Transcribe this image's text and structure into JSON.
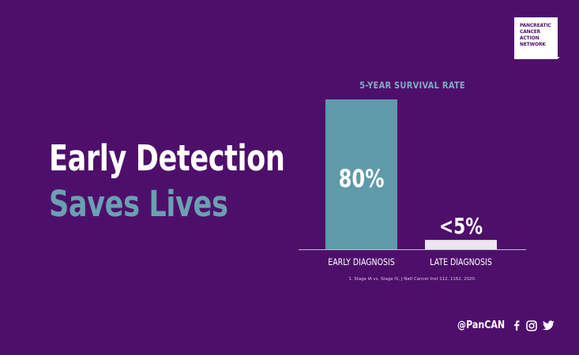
{
  "logo": {
    "lines": [
      "PANCREATIC",
      "CANCER",
      "ACTION",
      "NETWORK"
    ]
  },
  "headline": {
    "line1": "Early Detection",
    "line2": "Saves Lives"
  },
  "chart_data": {
    "type": "bar",
    "title": "5-YEAR SURVIVAL RATE",
    "categories": [
      "EARLY DIAGNOSIS",
      "LATE DIAGNOSIS"
    ],
    "values": [
      80,
      5
    ],
    "data_labels": [
      "80%",
      "<5%"
    ],
    "ylim": [
      0,
      80
    ],
    "xlabel": "",
    "ylabel": "",
    "grid": false,
    "colors": [
      "#5f9aab",
      "#ece6ef"
    ]
  },
  "footnote": "1. Stage IA vs. Stage IV, J Natl Cancer Inst 112, 1162, 2020.",
  "social": {
    "handle": "@PanCAN",
    "icons": [
      "facebook-icon",
      "instagram-icon",
      "twitter-icon"
    ]
  },
  "colors": {
    "background": "#4e0f6b",
    "accent": "#6aa0b2",
    "text": "#ffffff"
  }
}
